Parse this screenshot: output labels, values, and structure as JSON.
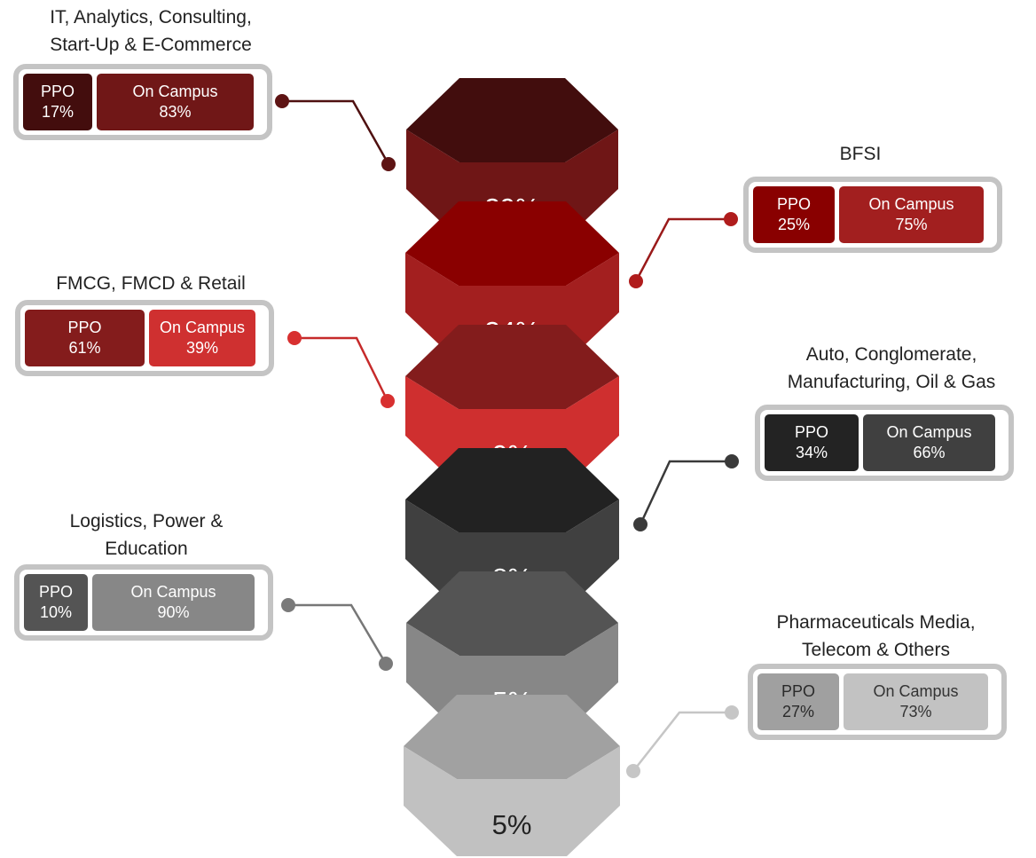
{
  "segments": [
    {
      "label": "39%",
      "top": "#420d0d",
      "front": "#6f1616",
      "color_key": "it"
    },
    {
      "label": "34%",
      "top": "#8a0000",
      "front": "#a31f1f",
      "color_key": "bfsi"
    },
    {
      "label": "9%",
      "top": "#831c1c",
      "front": "#cf2f2f",
      "color_key": "fmcg"
    },
    {
      "label": "8%",
      "top": "#222222",
      "front": "#404040",
      "color_key": "auto"
    },
    {
      "label": "5%",
      "top": "#545454",
      "front": "#878787",
      "color_key": "logistics"
    },
    {
      "label": "5%",
      "top": "#a1a1a1",
      "front": "#c1c1c1",
      "color_key": "pharma"
    }
  ],
  "callouts": [
    {
      "key": "it",
      "title": [
        "IT, Analytics, Consulting,",
        "Start-Up & E-Commerce"
      ],
      "ppo_label": "PPO",
      "ppo_value": "17%",
      "campus_label": "On Campus",
      "campus_value": "83%",
      "ppo_color": "#430d0d",
      "campus_color": "#701717",
      "line_color": "#4f1010",
      "dot_color": "#5e1414"
    },
    {
      "key": "bfsi",
      "title": [
        "BFSI"
      ],
      "ppo_label": "PPO",
      "ppo_value": "25%",
      "campus_label": "On Campus",
      "campus_value": "75%",
      "ppo_color": "#890000",
      "campus_color": "#a21f1f",
      "line_color": "#9a1a1a",
      "dot_color": "#b01c1c"
    },
    {
      "key": "fmcg",
      "title": [
        "FMCG, FMCD & Retail"
      ],
      "ppo_label": "PPO",
      "ppo_value": "61%",
      "campus_label": "On Campus",
      "campus_value": "39%",
      "ppo_color": "#841c1c",
      "campus_color": "#cf3030",
      "line_color": "#c62a2a",
      "dot_color": "#d83030"
    },
    {
      "key": "auto",
      "title": [
        "Auto, Conglomerate,",
        "Manufacturing, Oil & Gas"
      ],
      "ppo_label": "PPO",
      "ppo_value": "34%",
      "campus_label": "On Campus",
      "campus_value": "66%",
      "ppo_color": "#232323",
      "campus_color": "#404040",
      "line_color": "#3a3a3a",
      "dot_color": "#3a3a3a"
    },
    {
      "key": "logistics",
      "title": [
        "Logistics, Power &",
        "Education"
      ],
      "ppo_label": "PPO",
      "ppo_value": "10%",
      "campus_label": "On Campus",
      "campus_value": "90%",
      "ppo_color": "#545454",
      "campus_color": "#878787",
      "line_color": "#777777",
      "dot_color": "#7a7a7a"
    },
    {
      "key": "pharma",
      "title": [
        "Pharmaceuticals  Media,",
        "Telecom & Others"
      ],
      "ppo_label": "PPO",
      "ppo_value": "27%",
      "campus_label": "On Campus",
      "campus_value": "73%",
      "ppo_color": "#a0a0a0",
      "campus_color": "#c2c2c2",
      "line_color": "#c6c6c6",
      "dot_color": "#c6c6c6"
    }
  ]
}
